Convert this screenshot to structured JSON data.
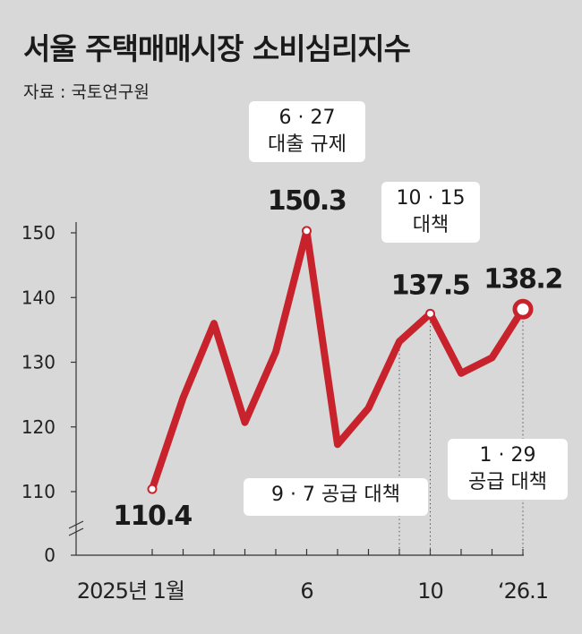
{
  "title": "서울 주택매매시장 소비심리지수",
  "source": "자료 : 국토연구원",
  "annotations": [
    {
      "line1": "6 · 27",
      "line2": "대출 규제"
    },
    {
      "line1": "10 · 15",
      "line2": "대책"
    },
    {
      "line1": "9 · 7 공급 대책",
      "line2": ""
    },
    {
      "line1": "1 · 29",
      "line2": "공급 대책"
    }
  ],
  "chart_data": {
    "type": "line",
    "title": "서울 주택매매시장 소비심리지수",
    "x": [
      "2025-01",
      "2025-02",
      "2025-03",
      "2025-04",
      "2025-05",
      "2025-06",
      "2025-07",
      "2025-08",
      "2025-09",
      "2025-10",
      "2025-11",
      "2025-12",
      "2026-01"
    ],
    "x_tick_labels": [
      {
        "label": "2025년 1월",
        "at": "2025-01"
      },
      {
        "label": "6",
        "at": "2025-06"
      },
      {
        "label": "10",
        "at": "2025-10"
      },
      {
        "label": "‘26.1",
        "at": "2026-01"
      }
    ],
    "series": [
      {
        "values": [
          110.4,
          124.5,
          136.0,
          120.7,
          131.6,
          150.3,
          117.3,
          122.9,
          133.2,
          137.5,
          128.3,
          130.7,
          138.2
        ]
      }
    ],
    "data_labels": [
      {
        "at": "2025-01",
        "text": "110.4"
      },
      {
        "at": "2025-06",
        "text": "150.3"
      },
      {
        "at": "2025-10",
        "text": "137.5"
      },
      {
        "at": "2026-01",
        "text": "138.2"
      }
    ],
    "y_ticks": [
      0,
      110,
      120,
      130,
      140,
      150
    ],
    "ylim_broken": [
      110,
      150
    ],
    "line_color": "#c8232c",
    "grid": false
  }
}
